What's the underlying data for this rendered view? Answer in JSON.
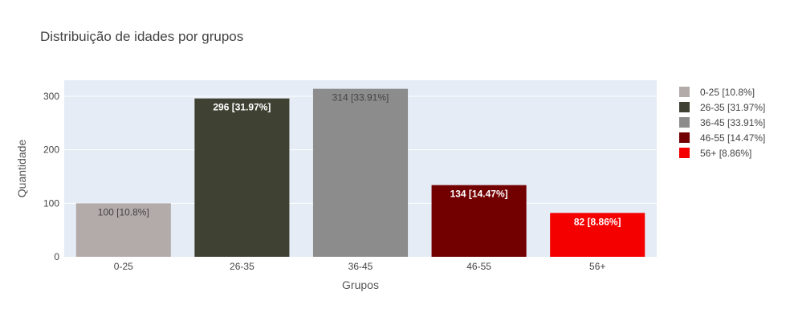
{
  "chart_data": {
    "type": "bar",
    "title": "Distribuição de idades por grupos",
    "xlabel": "Grupos",
    "ylabel": "Quantidade",
    "categories": [
      "0-25",
      "26-35",
      "36-45",
      "46-55",
      "56+"
    ],
    "values": [
      100,
      296,
      314,
      134,
      82
    ],
    "value_labels": [
      "100 [10.8%]",
      "296 [31.97%]",
      "314 [33.91%]",
      "134 [14.47%]",
      "82 [8.86%]"
    ],
    "series": [
      {
        "name": "0-25 [10.8%]",
        "category": "0-25",
        "value": 100,
        "color": "#b3aba9"
      },
      {
        "name": "26-35 [31.97%]",
        "category": "26-35",
        "value": 296,
        "color": "#3f4233"
      },
      {
        "name": "36-45 [33.91%]",
        "category": "36-45",
        "value": 314,
        "color": "#8c8c8c"
      },
      {
        "name": "46-55 [14.47%]",
        "category": "46-55",
        "value": 134,
        "color": "#730000"
      },
      {
        "name": "56+ [8.86%]",
        "category": "56+",
        "value": 82,
        "color": "#f50000"
      }
    ],
    "label_colors": [
      "#444444",
      "#ffffff",
      "#444444",
      "#ffffff",
      "#ffffff"
    ],
    "ylim": [
      0,
      330
    ],
    "yticks": [
      0,
      100,
      200,
      300
    ],
    "grid": true,
    "legend_position": "right",
    "plot_background": "#e5ecf6"
  }
}
